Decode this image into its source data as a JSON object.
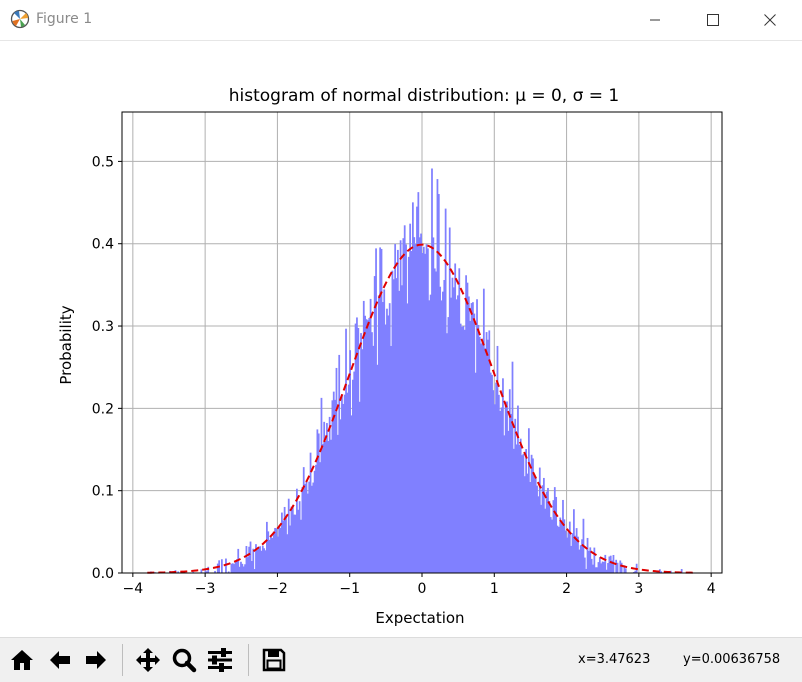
{
  "window": {
    "title": "Figure 1",
    "app_icon": "matplotlib-logo-icon",
    "controls": [
      "minimize-icon",
      "maximize-icon",
      "close-icon"
    ]
  },
  "chart_data": {
    "type": "bar",
    "title": "histogram of normal distribution: μ = 0, σ = 1",
    "xlabel": "Expectation",
    "ylabel": "Probability",
    "xlim": [
      -4.15,
      4.15
    ],
    "ylim": [
      0,
      0.56
    ],
    "xticks": [
      "−4",
      "−3",
      "−2",
      "−1",
      "0",
      "1",
      "2",
      "3",
      "4"
    ],
    "yticks": [
      "0.0",
      "0.1",
      "0.2",
      "0.3",
      "0.4",
      "0.5"
    ],
    "grid": true,
    "histogram": {
      "bin_count": 400,
      "x_range": [
        -3.8,
        3.75
      ],
      "color": "#8080ff",
      "approx_envelope": {
        "x": [
          -3.8,
          -3,
          -2,
          -1,
          0,
          1,
          2,
          3,
          3.75
        ],
        "y": [
          0.0003,
          0.0044,
          0.054,
          0.242,
          0.399,
          0.242,
          0.054,
          0.0044,
          0.0004
        ]
      }
    },
    "series": [
      {
        "type": "line",
        "style": "dashed",
        "color": "#e00000",
        "formula": "normal pdf, mu=0, sigma=1",
        "x_range": [
          -3.8,
          3.75
        ]
      }
    ]
  },
  "toolbar": {
    "buttons": [
      {
        "name": "home-icon"
      },
      {
        "name": "back-arrow-icon"
      },
      {
        "name": "forward-arrow-icon"
      },
      {
        "name": "pan-move-icon"
      },
      {
        "name": "zoom-magnifier-icon"
      },
      {
        "name": "configure-subplots-icon"
      },
      {
        "name": "save-floppy-icon"
      }
    ],
    "coords_x": "x=3.47623",
    "coords_y": "y=0.00636758"
  }
}
